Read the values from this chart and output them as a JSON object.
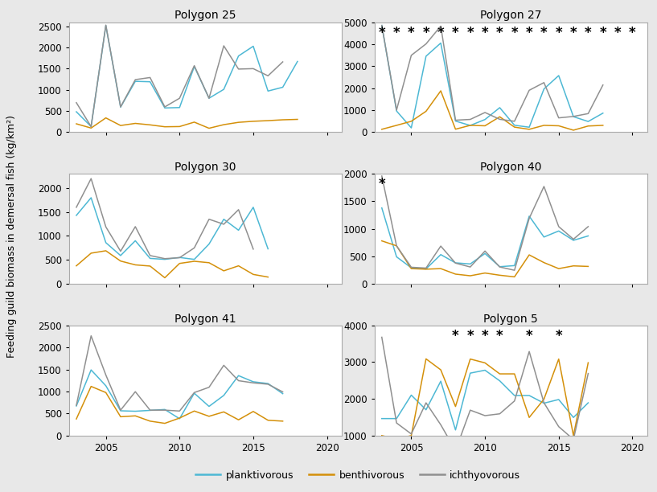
{
  "polygon_keys": [
    "25",
    "27",
    "30",
    "40",
    "41",
    "5"
  ],
  "polygon_labels": {
    "25": "Polygon 25",
    "27": "Polygon 27",
    "30": "Polygon 30",
    "40": "Polygon 40",
    "41": "Polygon 41",
    "5": "Polygon 5"
  },
  "years": {
    "25": [
      2003,
      2004,
      2005,
      2006,
      2007,
      2008,
      2009,
      2010,
      2011,
      2012,
      2013,
      2014,
      2015,
      2016,
      2017,
      2018,
      2019,
      2020
    ],
    "27": [
      2003,
      2004,
      2005,
      2006,
      2007,
      2008,
      2009,
      2010,
      2011,
      2012,
      2013,
      2014,
      2015,
      2016,
      2017,
      2018,
      2019,
      2020
    ],
    "30": [
      2003,
      2004,
      2005,
      2006,
      2007,
      2008,
      2009,
      2010,
      2011,
      2012,
      2013,
      2014,
      2015,
      2016,
      2017,
      2018,
      2019,
      2020
    ],
    "40": [
      2003,
      2004,
      2005,
      2006,
      2007,
      2008,
      2009,
      2010,
      2011,
      2012,
      2013,
      2014,
      2015,
      2016,
      2017,
      2018,
      2019,
      2020
    ],
    "41": [
      2003,
      2004,
      2005,
      2006,
      2007,
      2008,
      2009,
      2010,
      2011,
      2012,
      2013,
      2014,
      2015,
      2016,
      2017,
      2018,
      2019,
      2020
    ],
    "5": [
      2003,
      2004,
      2005,
      2006,
      2007,
      2008,
      2009,
      2010,
      2011,
      2012,
      2013,
      2014,
      2015,
      2016,
      2017,
      2018,
      2019,
      2020
    ]
  },
  "planktivorous": {
    "25": [
      480,
      130,
      2520,
      590,
      1200,
      1190,
      570,
      580,
      1550,
      800,
      1010,
      1800,
      2030,
      970,
      1060,
      1670,
      null,
      null
    ],
    "27": [
      4850,
      960,
      190,
      3450,
      4050,
      500,
      300,
      570,
      1110,
      310,
      220,
      1960,
      2570,
      700,
      480,
      860,
      null,
      null
    ],
    "30": [
      1430,
      1800,
      860,
      590,
      900,
      530,
      510,
      550,
      510,
      830,
      1350,
      1120,
      1600,
      730,
      null,
      null,
      null,
      null
    ],
    "40": [
      1380,
      490,
      290,
      270,
      530,
      380,
      360,
      550,
      310,
      330,
      1230,
      850,
      960,
      790,
      870,
      null,
      null,
      null
    ],
    "41": [
      670,
      1490,
      1130,
      560,
      550,
      570,
      590,
      380,
      960,
      660,
      910,
      1360,
      1220,
      1180,
      950,
      null,
      null,
      null
    ],
    "5": [
      1460,
      1460,
      2100,
      1700,
      2480,
      1150,
      2700,
      2780,
      2490,
      2090,
      2090,
      1880,
      1980,
      1490,
      1890,
      null,
      null,
      null
    ]
  },
  "benthivorous": {
    "25": [
      195,
      95,
      335,
      155,
      205,
      170,
      125,
      130,
      235,
      90,
      175,
      230,
      255,
      270,
      290,
      300,
      null,
      null
    ],
    "27": [
      125,
      305,
      490,
      945,
      1875,
      130,
      305,
      285,
      695,
      225,
      125,
      305,
      285,
      85,
      275,
      305,
      null,
      null
    ],
    "30": [
      375,
      640,
      690,
      475,
      395,
      370,
      125,
      425,
      470,
      440,
      270,
      375,
      195,
      140,
      null,
      null,
      null,
      null
    ],
    "40": [
      780,
      690,
      275,
      265,
      275,
      175,
      145,
      195,
      155,
      125,
      525,
      385,
      275,
      325,
      315,
      null,
      null,
      null
    ],
    "41": [
      375,
      1115,
      975,
      425,
      445,
      325,
      275,
      395,
      555,
      435,
      535,
      355,
      545,
      345,
      325,
      null,
      null,
      null
    ],
    "5": [
      995,
      900,
      995,
      3090,
      2790,
      1790,
      3085,
      2980,
      2680,
      2680,
      1490,
      1990,
      3085,
      995,
      2985,
      null,
      null,
      null
    ]
  },
  "ichthyovorous": {
    "25": [
      695,
      130,
      2530,
      595,
      1240,
      1290,
      595,
      800,
      1570,
      800,
      2040,
      1490,
      1500,
      1330,
      1660,
      null,
      null,
      null
    ],
    "27": [
      4850,
      1000,
      3490,
      4010,
      4820,
      540,
      575,
      890,
      580,
      490,
      1900,
      2250,
      645,
      710,
      840,
      2140,
      null,
      null
    ],
    "30": [
      1600,
      2200,
      1190,
      680,
      1195,
      590,
      525,
      545,
      750,
      1350,
      1245,
      1550,
      725,
      null,
      null,
      null,
      null,
      null
    ],
    "40": [
      1960,
      690,
      300,
      285,
      685,
      375,
      305,
      595,
      305,
      245,
      1190,
      1770,
      1040,
      810,
      1040,
      null,
      null,
      null
    ],
    "41": [
      685,
      2265,
      1375,
      575,
      995,
      575,
      575,
      555,
      975,
      1095,
      1595,
      1245,
      1195,
      1165,
      990,
      null,
      null,
      null
    ],
    "5": [
      3680,
      1340,
      1040,
      1890,
      1290,
      590,
      1690,
      1540,
      1590,
      1940,
      3290,
      1890,
      1240,
      890,
      2690,
      null,
      null,
      null
    ]
  },
  "star_years": {
    "25": [],
    "27": [
      2003,
      2004,
      2005,
      2006,
      2007,
      2008,
      2009,
      2010,
      2011,
      2012,
      2013,
      2014,
      2015,
      2016,
      2017,
      2018,
      2019,
      2020
    ],
    "30": [],
    "40": [
      2003
    ],
    "41": [],
    "5": [
      2008,
      2009,
      2010,
      2011,
      2013,
      2015
    ]
  },
  "ylims": {
    "25": [
      0,
      2600
    ],
    "27": [
      0,
      5000
    ],
    "30": [
      0,
      2300
    ],
    "40": [
      0,
      2000
    ],
    "41": [
      0,
      2500
    ],
    "5": [
      1000,
      4000
    ]
  },
  "yticks": {
    "25": [
      0,
      500,
      1000,
      1500,
      2000,
      2500
    ],
    "27": [
      0,
      1000,
      2000,
      3000,
      4000,
      5000
    ],
    "30": [
      0,
      500,
      1000,
      1500,
      2000
    ],
    "40": [
      0,
      500,
      1000,
      1500,
      2000
    ],
    "41": [
      0,
      500,
      1000,
      1500,
      2000,
      2500
    ],
    "5": [
      1000,
      2000,
      3000,
      4000
    ]
  },
  "xticks": [
    2005,
    2010,
    2015,
    2020
  ],
  "xlim": [
    2002.5,
    2021.0
  ],
  "colors": {
    "planktivorous": "#4db8d4",
    "benthivorous": "#d4900a",
    "ichthyovorous": "#909090"
  },
  "ylabel": "Feeding guild biomass in demersal fish (kg/km²)",
  "background_color": "#e8e8e8",
  "plot_bg": "#ffffff",
  "spine_color": "#aaaaaa",
  "star_color": "black",
  "star_fontsize": 12,
  "title_fontsize": 10,
  "legend_fontsize": 9,
  "tick_fontsize": 8.5,
  "linewidth": 1.1
}
